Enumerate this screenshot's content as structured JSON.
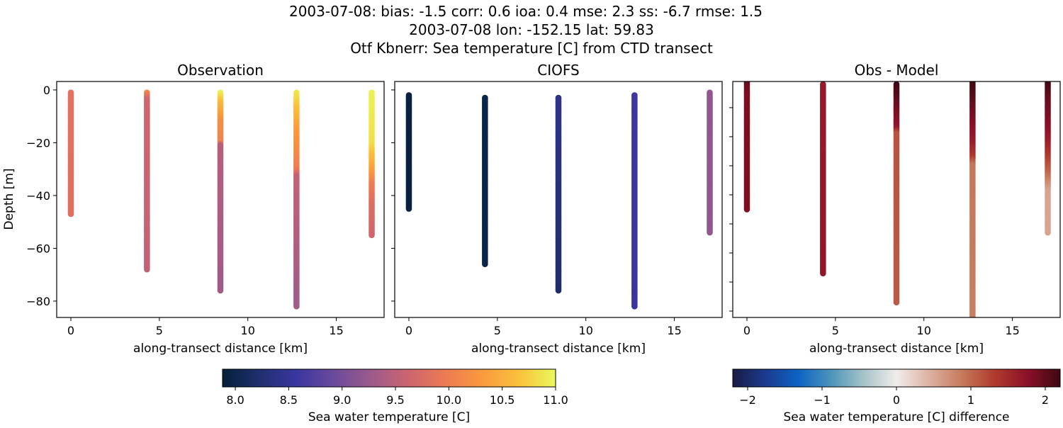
{
  "title_lines": [
    "2003-07-08: bias: -1.5  corr: 0.6  ioa: 0.4  mse: 2.3  ss: -6.7  rmse: 1.5",
    "2003-07-08 lon: -152.15 lat: 59.83",
    "Otf Kbnerr: Sea temperature [C] from CTD transect"
  ],
  "chart_data": [
    {
      "type": "scatter",
      "title": "Observation",
      "xlabel": "along-transect distance [km]",
      "ylabel": "Depth [m]",
      "xlim": [
        -0.8,
        17.7
      ],
      "ylim": [
        -86.2,
        3.2
      ],
      "xticks": [
        0,
        5,
        10,
        15
      ],
      "yticks": [
        0,
        -20,
        -40,
        -60,
        -80
      ],
      "ytick_labels": [
        "0",
        "−20",
        "−40",
        "−60",
        "−80"
      ],
      "colormap": "thermal",
      "clim": [
        7.88,
        11.0
      ],
      "profiles": [
        {
          "x": 0.0,
          "depth_range": [
            -1,
            -47
          ],
          "values": [
            [
              -1,
              9.85
            ],
            [
              -47,
              9.8
            ]
          ]
        },
        {
          "x": 4.3,
          "depth_range": [
            -1,
            -68
          ],
          "values": [
            [
              -1,
              10.1
            ],
            [
              -4,
              9.65
            ],
            [
              -68,
              9.55
            ]
          ]
        },
        {
          "x": 8.45,
          "depth_range": [
            -1,
            -76
          ],
          "values": [
            [
              -1,
              10.95
            ],
            [
              -5,
              10.6
            ],
            [
              -12,
              10.2
            ],
            [
              -20,
              10.05
            ],
            [
              -21,
              9.45
            ],
            [
              -76,
              9.3
            ]
          ]
        },
        {
          "x": 12.75,
          "depth_range": [
            -1,
            -82
          ],
          "values": [
            [
              -1,
              10.9
            ],
            [
              -8,
              10.6
            ],
            [
              -16,
              10.3
            ],
            [
              -30,
              10.0
            ],
            [
              -33,
              9.55
            ],
            [
              -82,
              9.3
            ]
          ]
        },
        {
          "x": 17.0,
          "depth_range": [
            -1,
            -55
          ],
          "values": [
            [
              -1,
              10.95
            ],
            [
              -20,
              10.85
            ],
            [
              -28,
              10.5
            ],
            [
              -36,
              10.0
            ],
            [
              -45,
              9.75
            ],
            [
              -55,
              9.65
            ]
          ]
        }
      ]
    },
    {
      "type": "scatter",
      "title": "CIOFS",
      "xlabel": "along-transect distance [km]",
      "xlim": [
        -0.8,
        17.7
      ],
      "ylim": [
        -86.2,
        3.2
      ],
      "xticks": [
        0,
        5,
        10,
        15
      ],
      "yticks": [
        0,
        -20,
        -40,
        -60,
        -80
      ],
      "colormap": "thermal",
      "clim": [
        7.88,
        11.0
      ],
      "profiles": [
        {
          "x": 0.0,
          "depth_range": [
            -2,
            -45
          ],
          "values": [
            [
              -2,
              7.92
            ],
            [
              -45,
              7.92
            ]
          ]
        },
        {
          "x": 4.3,
          "depth_range": [
            -3,
            -66
          ],
          "values": [
            [
              -3,
              7.97
            ],
            [
              -66,
              7.97
            ]
          ]
        },
        {
          "x": 8.45,
          "depth_range": [
            -3,
            -76
          ],
          "values": [
            [
              -3,
              8.4
            ],
            [
              -40,
              8.3
            ],
            [
              -76,
              8.2
            ]
          ]
        },
        {
          "x": 12.75,
          "depth_range": [
            -2,
            -82
          ],
          "values": [
            [
              -2,
              8.6
            ],
            [
              -82,
              8.55
            ]
          ]
        },
        {
          "x": 17.0,
          "depth_range": [
            -1,
            -54
          ],
          "values": [
            [
              -1,
              9.2
            ],
            [
              -54,
              9.2
            ]
          ]
        }
      ]
    },
    {
      "type": "scatter",
      "title": "Obs - Model",
      "xlabel": "along-transect distance [km]",
      "xlim": [
        -0.8,
        17.7
      ],
      "ylim": [
        -82.2,
        -1.0
      ],
      "xticks": [
        0,
        5,
        10,
        15
      ],
      "yticks": [
        -10,
        -20,
        -30,
        -40,
        -50,
        -60,
        -70,
        -80
      ],
      "colormap": "balance",
      "clim": [
        -2.2,
        2.2
      ],
      "profiles": [
        {
          "x": 0.0,
          "depth_range": [
            -1,
            -45
          ],
          "values": [
            [
              -1,
              2.0
            ],
            [
              -6,
              1.85
            ],
            [
              -45,
              1.85
            ]
          ]
        },
        {
          "x": 4.3,
          "depth_range": [
            -2,
            -67
          ],
          "values": [
            [
              -2,
              1.65
            ],
            [
              -67,
              1.7
            ]
          ]
        },
        {
          "x": 8.45,
          "depth_range": [
            -2,
            -77
          ],
          "values": [
            [
              -2,
              2.2
            ],
            [
              -10,
              1.9
            ],
            [
              -17,
              1.7
            ],
            [
              -19,
              1.15
            ],
            [
              -77,
              1.1
            ]
          ]
        },
        {
          "x": 12.75,
          "depth_range": [
            -1,
            -82
          ],
          "values": [
            [
              -1,
              2.2
            ],
            [
              -10,
              1.95
            ],
            [
              -22,
              1.65
            ],
            [
              -27,
              1.35
            ],
            [
              -30,
              0.9
            ],
            [
              -82,
              0.85
            ]
          ]
        },
        {
          "x": 17.0,
          "depth_range": [
            -1,
            -53
          ],
          "values": [
            [
              -1,
              2.2
            ],
            [
              -8,
              1.95
            ],
            [
              -18,
              1.75
            ],
            [
              -24,
              1.5
            ],
            [
              -29,
              1.2
            ],
            [
              -33,
              1.0
            ],
            [
              -36,
              0.75
            ],
            [
              -39,
              0.55
            ],
            [
              -53,
              0.55
            ]
          ]
        }
      ]
    }
  ],
  "colorbars": [
    {
      "label": "Sea water temperature [C]",
      "colormap": "thermal",
      "range": [
        7.88,
        11.0
      ],
      "ticks": [
        8.0,
        8.5,
        9.0,
        9.5,
        10.0,
        10.5,
        11.0
      ],
      "tick_labels": [
        "8.0",
        "8.5",
        "9.0",
        "9.5",
        "10.0",
        "10.5",
        "11.0"
      ]
    },
    {
      "label": "Sea water temperature [C] difference",
      "colormap": "balance",
      "range": [
        -2.2,
        2.2
      ],
      "ticks": [
        -2,
        -1,
        0,
        1,
        2
      ],
      "tick_labels": [
        "−2",
        "−1",
        "0",
        "1",
        "2"
      ]
    }
  ],
  "colormaps": {
    "thermal": [
      "#04203a",
      "#1f2f6e",
      "#3a36a0",
      "#6a4a9c",
      "#9b5a8c",
      "#cc6470",
      "#ec7a55",
      "#f99a3e",
      "#fbc03c",
      "#e8fa5b"
    ],
    "balance": [
      "#181c43",
      "#1b3a8f",
      "#0d63c4",
      "#4d94bb",
      "#a6c3c9",
      "#f1ecec",
      "#dcb2a2",
      "#c67a5c",
      "#b03a2e",
      "#8c1028",
      "#3c0912"
    ]
  }
}
